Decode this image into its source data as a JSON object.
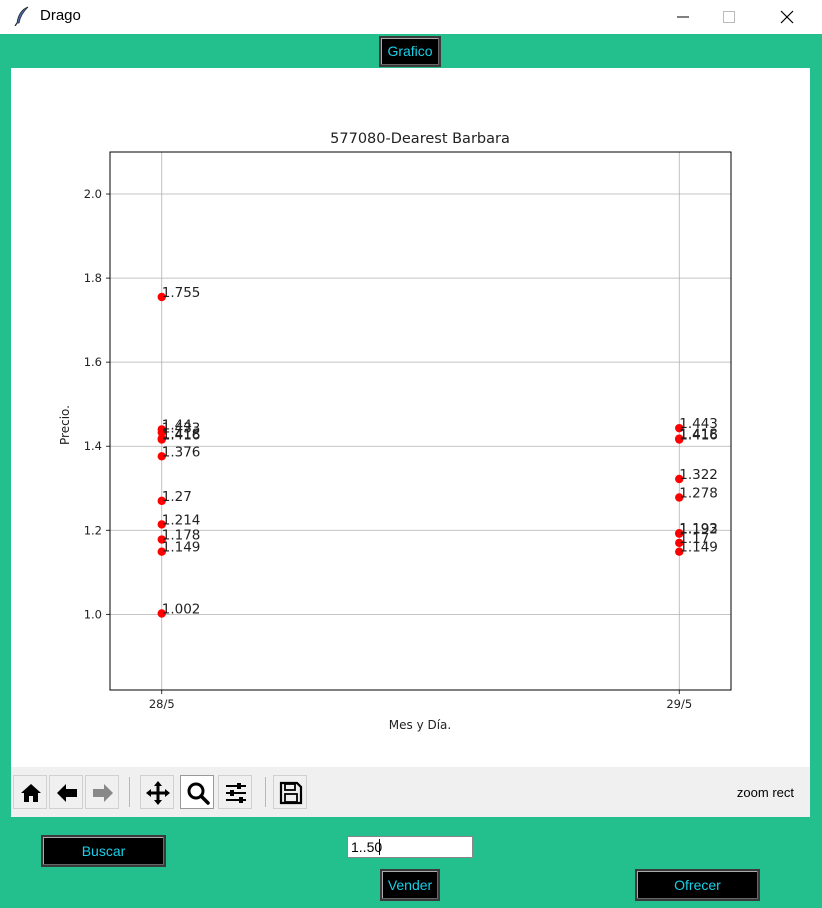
{
  "window": {
    "title": "Drago",
    "icon": "feather-icon",
    "controls": [
      "minimize-icon",
      "maximize-icon",
      "close-icon"
    ]
  },
  "tabs": {
    "grafico_label": "Grafico"
  },
  "chart_data": {
    "type": "scatter",
    "title": "577080-Dearest Barbara",
    "xlabel": "Mes y Día.",
    "ylabel": "Precio.",
    "categories": [
      "28/5",
      "29/5"
    ],
    "ylim": [
      0.82,
      2.1
    ],
    "yticks": [
      1.0,
      1.2,
      1.4,
      1.6,
      1.8,
      2.0
    ],
    "ytick_labels": [
      "1.0",
      "1.2",
      "1.4",
      "1.6",
      "1.8",
      "2.0"
    ],
    "grid": true,
    "marker_color": "#ff0000",
    "points": [
      {
        "x": "28/5",
        "y": 1.755,
        "label": "1.755"
      },
      {
        "x": "28/5",
        "y": 1.44,
        "label": "1.44"
      },
      {
        "x": "28/5",
        "y": 1.433,
        "label": "1.433"
      },
      {
        "x": "28/5",
        "y": 1.418,
        "label": "1.418"
      },
      {
        "x": "28/5",
        "y": 1.416,
        "label": "1.416"
      },
      {
        "x": "28/5",
        "y": 1.376,
        "label": "1.376"
      },
      {
        "x": "28/5",
        "y": 1.27,
        "label": "1.27"
      },
      {
        "x": "28/5",
        "y": 1.214,
        "label": "1.214"
      },
      {
        "x": "28/5",
        "y": 1.178,
        "label": "1.178"
      },
      {
        "x": "28/5",
        "y": 1.149,
        "label": "1.149"
      },
      {
        "x": "28/5",
        "y": 1.002,
        "label": "1.002"
      },
      {
        "x": "29/5",
        "y": 1.443,
        "label": "1.443"
      },
      {
        "x": "29/5",
        "y": 1.418,
        "label": "1.418"
      },
      {
        "x": "29/5",
        "y": 1.416,
        "label": "1.416"
      },
      {
        "x": "29/5",
        "y": 1.322,
        "label": "1.322"
      },
      {
        "x": "29/5",
        "y": 1.278,
        "label": "1.278"
      },
      {
        "x": "29/5",
        "y": 1.193,
        "label": "1.193"
      },
      {
        "x": "29/5",
        "y": 1.192,
        "label": "1.192"
      },
      {
        "x": "29/5",
        "y": 1.17,
        "label": "1.17"
      },
      {
        "x": "29/5",
        "y": 1.149,
        "label": "1.149"
      }
    ]
  },
  "toolbar": {
    "buttons": [
      "home-icon",
      "back-icon",
      "forward-icon",
      "pan-icon",
      "zoom-icon",
      "configure-subplots-icon",
      "save-icon"
    ],
    "status_text": "zoom rect"
  },
  "controls": {
    "buscar_label": "Buscar",
    "range_value": "1..50",
    "vender_label": "Vender",
    "ofrecer_label": "Ofrecer"
  },
  "colors": {
    "background_green": "#23c08e",
    "button_bg": "#000000",
    "button_text": "#18d0e8",
    "marker": "#ff0000"
  }
}
